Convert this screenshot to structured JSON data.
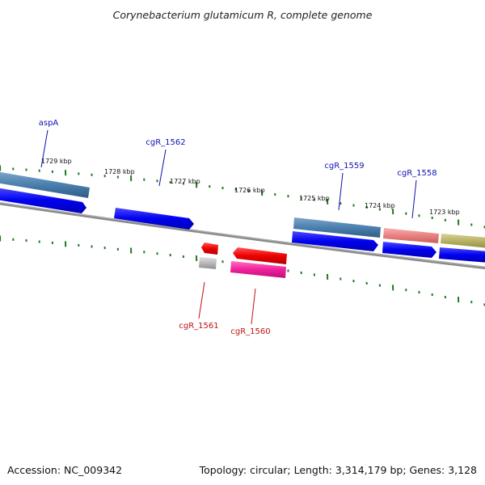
{
  "title": "Corynebacterium glutamicum R, complete genome",
  "footer": {
    "accession": "Accession: NC_009342",
    "summary": "Topology: circular; Length: 3,314,179 bp; Genes: 3,128"
  },
  "scale_labels": [
    "1729 kbp",
    "1728 kbp",
    "1727 kbp",
    "1726 kbp",
    "1725 kbp",
    "1724 kbp",
    "1723 kbp"
  ],
  "gene_labels": [
    {
      "text": "aspA",
      "strand": "forward"
    },
    {
      "text": "cgR_1562",
      "strand": "forward"
    },
    {
      "text": "cgR_1559",
      "strand": "forward"
    },
    {
      "text": "cgR_1558",
      "strand": "forward"
    },
    {
      "text": "cgR_1561",
      "strand": "reverse"
    },
    {
      "text": "cgR_1560",
      "strand": "reverse"
    }
  ],
  "colors": {
    "forward_label": "#1010b0",
    "reverse_label": "#c01010",
    "tick": "#1f7a1f",
    "backbone": "#777777"
  }
}
